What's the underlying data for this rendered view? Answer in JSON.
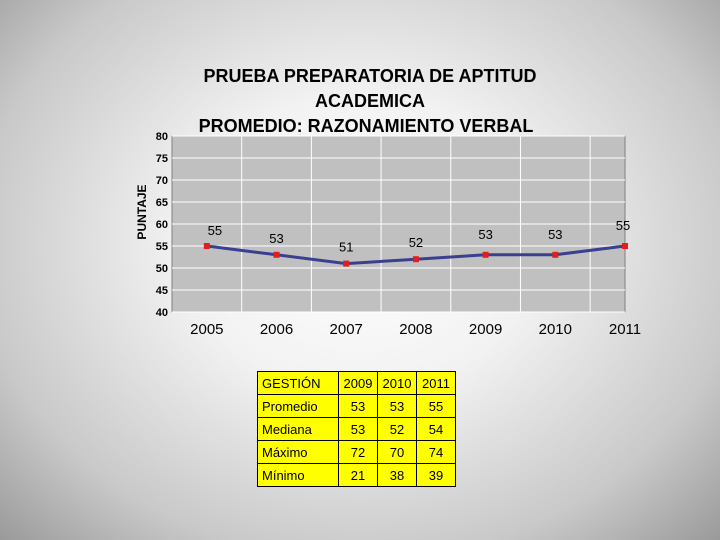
{
  "chart_data": {
    "type": "line",
    "title_lines": [
      "PRUEBA PREPARATORIA DE APTITUD",
      "ACADEMICA",
      "PROMEDIO: RAZONAMIENTO VERBAL"
    ],
    "ylabel": "PUNTAJE",
    "xlabel": "",
    "categories": [
      "2005",
      "2006",
      "2007",
      "2008",
      "2009",
      "2010",
      "2011"
    ],
    "values": [
      55,
      53,
      51,
      52,
      53,
      53,
      55
    ],
    "yticks": [
      "40",
      "45",
      "50",
      "55",
      "60",
      "65",
      "70",
      "75",
      "80"
    ],
    "ylim": [
      40,
      80
    ],
    "grid": true,
    "line_color": "#3a3f8f",
    "marker_color": "#e0201c",
    "plot_bg": "#c0c0c0"
  },
  "table": {
    "header": [
      "GESTIÓN",
      "2009",
      "2010",
      "2011"
    ],
    "rows": [
      [
        "Promedio",
        "53",
        "53",
        "55"
      ],
      [
        "Mediana",
        "53",
        "52",
        "54"
      ],
      [
        "Máximo",
        "72",
        "70",
        "74"
      ],
      [
        "Mínimo",
        "21",
        "38",
        "39"
      ]
    ],
    "bg_color": "#ffff00"
  }
}
